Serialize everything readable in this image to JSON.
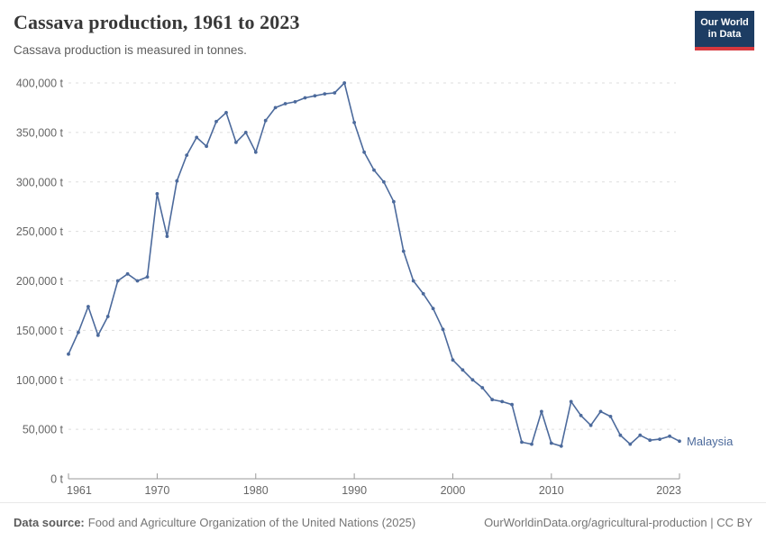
{
  "header": {
    "title": "Cassava production, 1961 to 2023",
    "subtitle": "Cassava production is measured in tonnes.",
    "logo": {
      "line1": "Our World",
      "line2": "in Data",
      "bg_color": "#1d3d63",
      "stripe_color": "#d7383e"
    }
  },
  "chart_data": {
    "type": "line",
    "title": "Cassava production, 1961 to 2023",
    "unit": "t",
    "xlim": [
      1961,
      2023
    ],
    "ylim": [
      0,
      400000
    ],
    "x_ticks": [
      1961,
      1970,
      1980,
      1990,
      2000,
      2010,
      2023
    ],
    "y_ticks": [
      0,
      50000,
      100000,
      150000,
      200000,
      250000,
      300000,
      350000,
      400000
    ],
    "grid": "horizontal-dashed",
    "legend_position": "end-of-line",
    "colors": {
      "line": "#4C6A9C",
      "grid": "#dddddd",
      "axis": "#999999",
      "tick_label": "#666666"
    },
    "series": [
      {
        "name": "Malaysia",
        "color": "#4C6A9C",
        "x": [
          1961,
          1962,
          1963,
          1964,
          1965,
          1966,
          1967,
          1968,
          1969,
          1970,
          1971,
          1972,
          1973,
          1974,
          1975,
          1976,
          1977,
          1978,
          1979,
          1980,
          1981,
          1982,
          1983,
          1984,
          1985,
          1986,
          1987,
          1988,
          1989,
          1990,
          1991,
          1992,
          1993,
          1994,
          1995,
          1996,
          1997,
          1998,
          1999,
          2000,
          2001,
          2002,
          2003,
          2004,
          2005,
          2006,
          2007,
          2008,
          2009,
          2010,
          2011,
          2012,
          2013,
          2014,
          2015,
          2016,
          2017,
          2018,
          2019,
          2020,
          2021,
          2022,
          2023
        ],
        "values": [
          126000,
          148000,
          174000,
          145000,
          164000,
          200000,
          207000,
          200000,
          204000,
          288000,
          245000,
          301000,
          327000,
          345000,
          336000,
          361000,
          370000,
          340000,
          350000,
          330000,
          362000,
          375000,
          379000,
          381000,
          385000,
          387000,
          389000,
          390000,
          400000,
          360000,
          330000,
          312000,
          300000,
          280000,
          230000,
          200000,
          187000,
          172000,
          151000,
          120000,
          110000,
          100000,
          92000,
          80000,
          78000,
          75000,
          37000,
          35000,
          68000,
          36000,
          33000,
          78000,
          64000,
          54000,
          68000,
          63000,
          44000,
          35000,
          44000,
          39000,
          40000,
          43000,
          38000
        ]
      }
    ]
  },
  "footer": {
    "datasource_label": "Data source:",
    "datasource_text": "Food and Agriculture Organization of the United Nations (2025)",
    "link": "OurWorldinData.org/agricultural-production | CC BY"
  }
}
